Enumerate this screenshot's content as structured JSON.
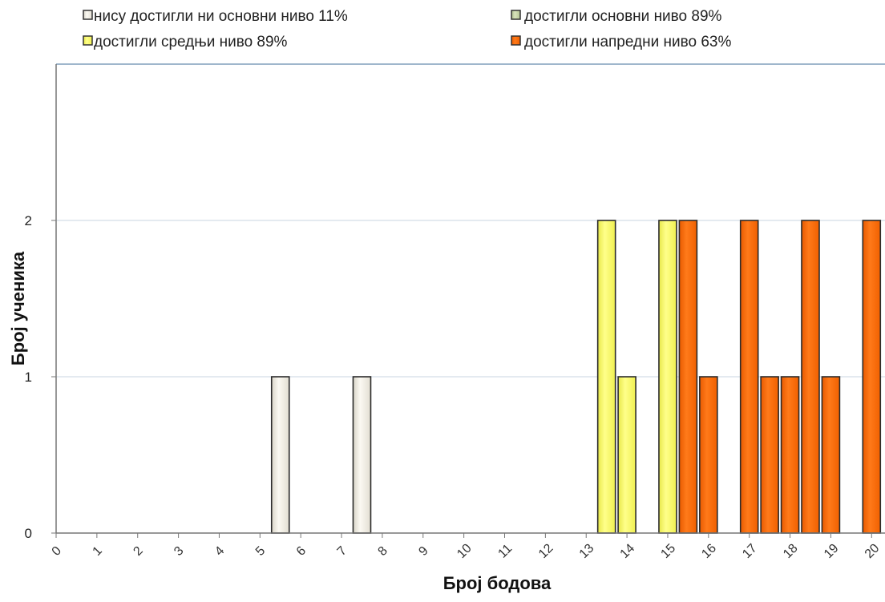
{
  "chart_data": {
    "type": "bar",
    "xlabel": "Број бодова",
    "ylabel": "Број ученика",
    "ylim": [
      0,
      3
    ],
    "y_ticks": [
      "0",
      "1",
      "2"
    ],
    "categories": [
      "0",
      "1",
      "2",
      "3",
      "4",
      "5",
      "6",
      "7",
      "8",
      "9",
      "10",
      "11",
      "12",
      "13",
      "14",
      "15",
      "16",
      "17",
      "18",
      "19",
      "20"
    ],
    "grid": "horizontal",
    "legend_position": "top",
    "legend": [
      {
        "label": "нису достигли ни основни ниво 11%",
        "color": "#f2efe6"
      },
      {
        "label": "достигли основни ниво 89%",
        "color": "#c8d4a8"
      },
      {
        "label": "достигли средњи ниво 89%",
        "color": "#ffff66"
      },
      {
        "label": "достигли напредни ниво 63%",
        "color": "#ff6600"
      }
    ],
    "bars": [
      {
        "x": 5.5,
        "value": 1,
        "level": 0
      },
      {
        "x": 7.5,
        "value": 1,
        "level": 0
      },
      {
        "x": 13.5,
        "value": 2,
        "level": 2
      },
      {
        "x": 14,
        "value": 1,
        "level": 2
      },
      {
        "x": 15,
        "value": 2,
        "level": 2
      },
      {
        "x": 15.5,
        "value": 2,
        "level": 3
      },
      {
        "x": 16,
        "value": 1,
        "level": 3
      },
      {
        "x": 17,
        "value": 2,
        "level": 3
      },
      {
        "x": 17.5,
        "value": 1,
        "level": 3
      },
      {
        "x": 18,
        "value": 1,
        "level": 3
      },
      {
        "x": 18.5,
        "value": 2,
        "level": 3
      },
      {
        "x": 19,
        "value": 1,
        "level": 3
      },
      {
        "x": 20,
        "value": 2,
        "level": 3
      }
    ]
  }
}
